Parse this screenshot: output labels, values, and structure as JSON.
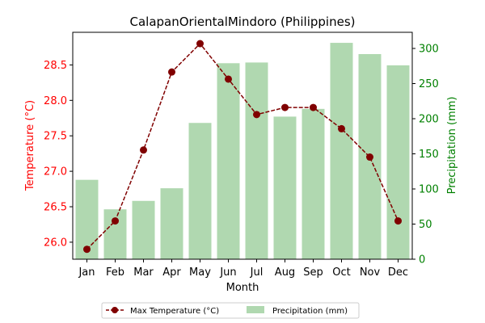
{
  "chart_data": {
    "type": "bar+line",
    "title": "CalapanOrientalMindoro (Philippines)",
    "xlabel": "Month",
    "ylabel_left": "Temperature (°C)",
    "ylabel_right": "Precipitation (mm)",
    "categories": [
      "Jan",
      "Feb",
      "Mar",
      "Apr",
      "May",
      "Jun",
      "Jul",
      "Aug",
      "Sep",
      "Oct",
      "Nov",
      "Dec"
    ],
    "series": [
      {
        "name": "Max Temperature (°C)",
        "type": "line",
        "axis": "left",
        "color": "#800000",
        "values": [
          25.9,
          26.3,
          27.3,
          28.4,
          28.8,
          28.3,
          27.8,
          27.9,
          27.9,
          27.6,
          27.2,
          26.3
        ]
      },
      {
        "name": "Precipitation (mm)",
        "type": "bar",
        "axis": "right",
        "color": "#b0d8b0",
        "values": [
          113,
          71,
          83,
          101,
          194,
          279,
          280,
          203,
          214,
          308,
          292,
          276
        ]
      }
    ],
    "ylim_left": [
      25.76,
      28.96
    ],
    "yticks_left": [
      "26.0",
      "26.5",
      "27.0",
      "27.5",
      "28.0",
      "28.5"
    ],
    "ylim_right": [
      0,
      323
    ],
    "yticks_right": [
      "0",
      "50",
      "100",
      "150",
      "200",
      "250",
      "300"
    ],
    "left_axis_color": "#ff0000",
    "right_axis_color": "#008000",
    "grid": false,
    "legend_position": "bottom-center"
  }
}
